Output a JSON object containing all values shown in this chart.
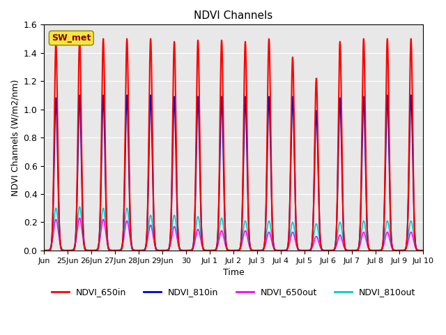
{
  "title": "NDVI Channels",
  "xlabel": "Time",
  "ylabel": "NDVI Channels (W/m2/nm)",
  "annotation": "SW_met",
  "annotation_color": "#8B0000",
  "annotation_bg": "#f5e642",
  "ylim": [
    0,
    1.6
  ],
  "background_color": "#e8e8e8",
  "series": {
    "NDVI_650in": {
      "color": "#ff0000",
      "peak": 1.5,
      "lw": 1.5
    },
    "NDVI_810in": {
      "color": "#0000cc",
      "peak": 1.1,
      "lw": 1.5
    },
    "NDVI_650out": {
      "color": "#ff00ff",
      "peak": 0.22,
      "lw": 1.2
    },
    "NDVI_810out": {
      "color": "#00cccc",
      "peak": 0.3,
      "lw": 1.2
    }
  },
  "xtick_labels": [
    "Jun",
    "25Jun",
    "26Jun",
    "27Jun",
    "28Jun",
    "29Jun",
    "30",
    "Jul 1",
    "Jul 2",
    "Jul 3",
    "Jul 4",
    "Jul 5",
    "Jul 6",
    "Jul 7",
    "Jul 8",
    "Jul 9",
    "Jul 10"
  ],
  "grid_color": "#ffffff",
  "n_days": 16,
  "points_per_day": 200,
  "yticks": [
    0.0,
    0.2,
    0.4,
    0.6,
    0.8,
    1.0,
    1.2,
    1.4,
    1.6
  ]
}
